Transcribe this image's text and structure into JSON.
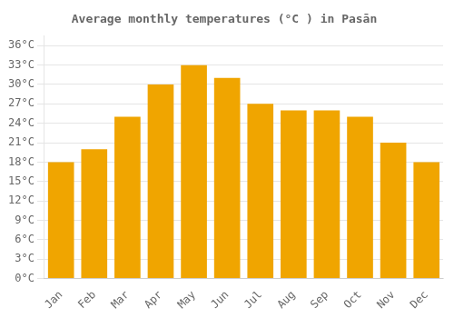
{
  "chart_data": {
    "type": "bar",
    "title": "Average monthly temperatures (°C ) in Pasān",
    "categories": [
      "Jan",
      "Feb",
      "Mar",
      "Apr",
      "May",
      "Jun",
      "Jul",
      "Aug",
      "Sep",
      "Oct",
      "Nov",
      "Dec"
    ],
    "values": [
      18,
      20,
      25,
      30,
      33,
      31,
      27,
      26,
      26,
      25,
      21,
      18
    ],
    "color": "#F0A500",
    "ylim": [
      0,
      37.5
    ],
    "yticks": [
      {
        "value": 0,
        "label": "0°C"
      },
      {
        "value": 3,
        "label": "3°C"
      },
      {
        "value": 6,
        "label": "6°C"
      },
      {
        "value": 9,
        "label": "9°C"
      },
      {
        "value": 12,
        "label": "12°C"
      },
      {
        "value": 15,
        "label": "15°C"
      },
      {
        "value": 18,
        "label": "18°C"
      },
      {
        "value": 21,
        "label": "21°C"
      },
      {
        "value": 24,
        "label": "24°C"
      },
      {
        "value": 27,
        "label": "27°C"
      },
      {
        "value": 30,
        "label": "30°C"
      },
      {
        "value": 33,
        "label": "33°C"
      },
      {
        "value": 36,
        "label": "36°C"
      }
    ],
    "grid": true
  }
}
